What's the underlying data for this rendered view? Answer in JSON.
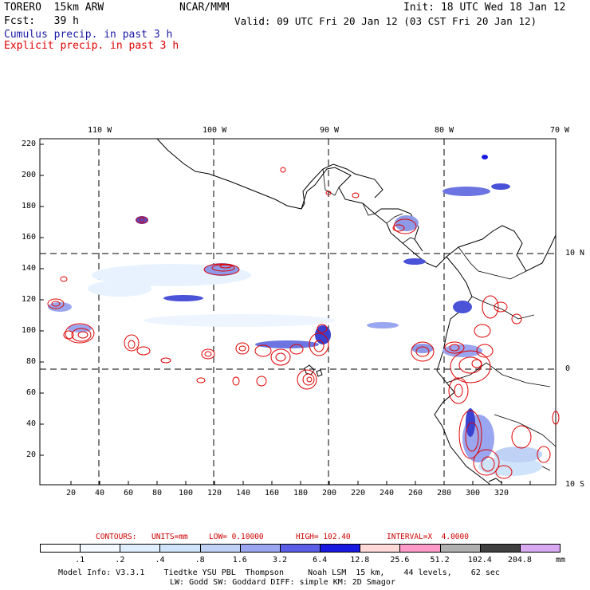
{
  "header": {
    "model": "TORERO  15km ARW",
    "org": "NCAR/MMM",
    "init": "Init: 18 UTC Wed 18 Jan 12",
    "fcst": "Fcst:   39 h",
    "valid": "Valid: 09 UTC Fri 20 Jan 12 (03 CST Fri 20 Jan 12)",
    "legend_cumulus": "Cumulus precip. in past 3 h",
    "legend_explicit": "Explicit precip. in past 3 h"
  },
  "colors": {
    "cumulus": "#1a1aa6",
    "explicit": "#e00000",
    "contour_info": "#cc0000"
  },
  "map": {
    "lon_labels": [
      "110 W",
      "100 W",
      "90 W",
      "80 W",
      "70 W"
    ],
    "lat_labels": [
      "10 N",
      "0",
      "10 S"
    ],
    "y_ticks": [
      "220",
      "200",
      "180",
      "160",
      "140",
      "120",
      "100",
      "80",
      "60",
      "40",
      "20"
    ],
    "x_ticks": [
      "20",
      "40",
      "60",
      "80",
      "100",
      "120",
      "140",
      "160",
      "180",
      "200",
      "220",
      "240",
      "260",
      "280",
      "300",
      "320"
    ]
  },
  "contours": {
    "label": "CONTOURS:",
    "units": "UNITS=mm",
    "low": "LOW= 0.10000",
    "high": "HIGH= 102.40",
    "interval": "INTERVAL=X  4.0000"
  },
  "colorbar": {
    "values": [
      ".1",
      ".2",
      ".4",
      ".8",
      "1.6",
      "3.2",
      "6.4",
      "12.8",
      "25.6",
      "51.2",
      "102.4",
      "204.8"
    ],
    "unit": "mm",
    "colors": [
      "#ffffff",
      "#f4f9ff",
      "#e0efff",
      "#cfe4fb",
      "#bfd2f6",
      "#9aa6ef",
      "#5a5ee6",
      "#1818e0",
      "#ffd8d8",
      "#ff99c8",
      "#b0b0b0",
      "#404040",
      "#d8a8f0"
    ]
  },
  "footer": {
    "line1": "Model Info: V3.3.1    Tiedtke YSU PBL  Thompson     Noah LSM  15 km,    44 levels,    62 sec",
    "line2": "LW: Godd SW: Goddard DIFF: simple KM: 2D Smagor"
  }
}
